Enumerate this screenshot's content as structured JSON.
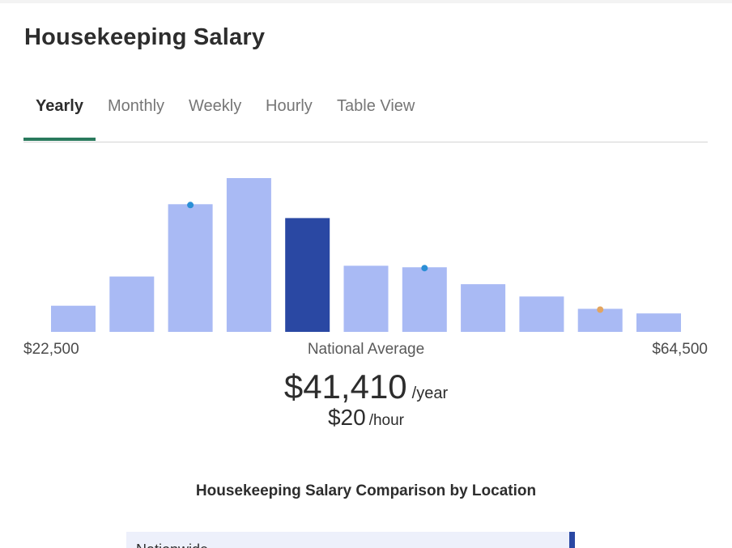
{
  "page": {
    "title": "Housekeeping Salary"
  },
  "tabs": [
    {
      "label": "Yearly",
      "active": true
    },
    {
      "label": "Monthly",
      "active": false
    },
    {
      "label": "Weekly",
      "active": false
    },
    {
      "label": "Hourly",
      "active": false
    },
    {
      "label": "Table View",
      "active": false
    }
  ],
  "colors": {
    "accent_tab": "#2a7a5d",
    "bar": "#a9baf4",
    "bar_highlight": "#2a48a3",
    "dot_blue": "#2b8fd6",
    "dot_orange": "#e3a560"
  },
  "chart_data": {
    "type": "bar",
    "range_min_label": "$22,500",
    "range_max_label": "$64,500",
    "center_label": "National Average",
    "values": [
      17,
      36,
      83,
      100,
      74,
      43,
      42,
      31,
      23,
      15,
      12
    ],
    "highlight_index": 4,
    "markers": [
      {
        "index": 2,
        "color": "blue"
      },
      {
        "index": 6,
        "color": "blue"
      },
      {
        "index": 9,
        "color": "orange"
      }
    ]
  },
  "average": {
    "yearly_value": "$41,410",
    "yearly_unit": "/year",
    "hourly_value": "$20",
    "hourly_unit": "/hour"
  },
  "comparison": {
    "title": "Housekeeping Salary Comparison by Location",
    "first_row_label": "Nationwide"
  }
}
